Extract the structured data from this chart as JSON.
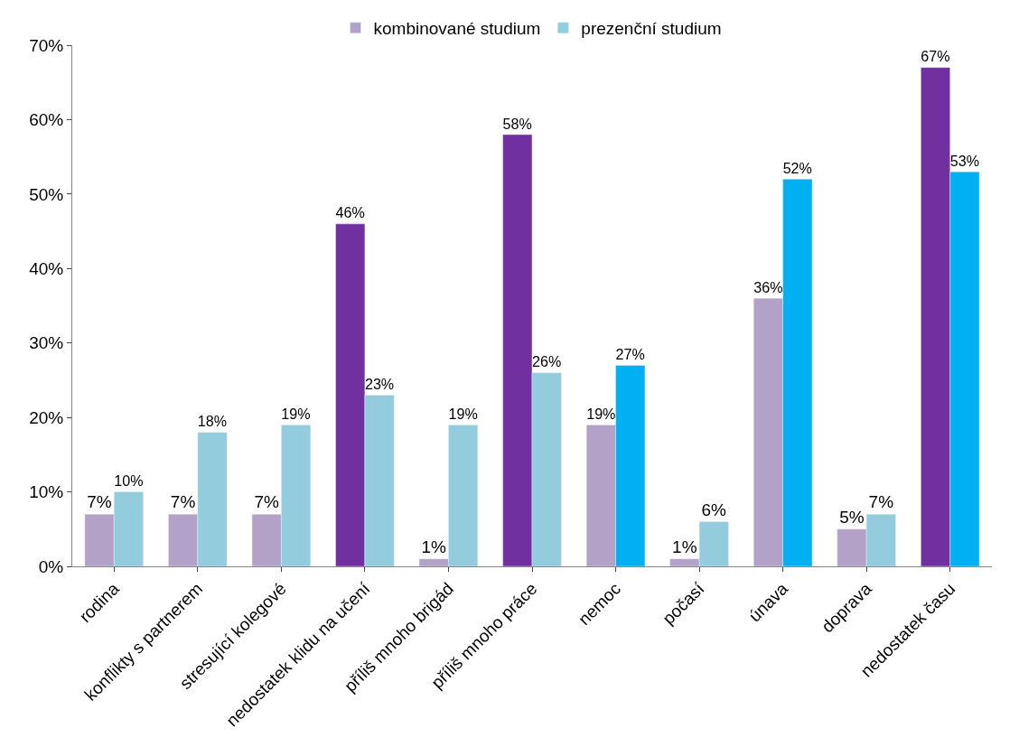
{
  "chart_data": {
    "type": "bar",
    "categories": [
      "rodina",
      "konflikty s partnerem",
      "stresující kolegové",
      "nedostatek klidu na učení",
      "příliš mnoho brigád",
      "příliš mnoho práce",
      "nemoc",
      "počasí",
      "únava",
      "doprava",
      "nedostatek času"
    ],
    "series": [
      {
        "name": "kombinované studium",
        "colors": [
          "#b3a2c7",
          "#b3a2c7",
          "#b3a2c7",
          "#7030a0",
          "#b3a2c7",
          "#7030a0",
          "#b3a2c7",
          "#b3a2c7",
          "#b3a2c7",
          "#b3a2c7",
          "#7030a0"
        ],
        "values": [
          7,
          7,
          7,
          46,
          1,
          58,
          19,
          1,
          36,
          5,
          67
        ],
        "value_labels": [
          "7%",
          "7%",
          "7%",
          "46%",
          "1%",
          "58%",
          "19%",
          "1%",
          "36%",
          "5%",
          "67%"
        ]
      },
      {
        "name": "prezenční studium",
        "colors": [
          "#93cddd",
          "#93cddd",
          "#93cddd",
          "#93cddd",
          "#93cddd",
          "#93cddd",
          "#00b0f0",
          "#93cddd",
          "#00b0f0",
          "#93cddd",
          "#00b0f0"
        ],
        "values": [
          10,
          18,
          19,
          23,
          19,
          26,
          27,
          6,
          52,
          7,
          53
        ],
        "value_labels": [
          "10%",
          "18%",
          "19%",
          "23%",
          "19%",
          "26%",
          "27%",
          "6%",
          "52%",
          "7%",
          "53%"
        ]
      }
    ],
    "ylim": [
      0,
      70
    ],
    "yticks": [
      {
        "value": 0,
        "label": "0%"
      },
      {
        "value": 10,
        "label": "10%"
      },
      {
        "value": 20,
        "label": "20%"
      },
      {
        "value": 30,
        "label": "30%"
      },
      {
        "value": 40,
        "label": "40%"
      },
      {
        "value": 50,
        "label": "50%"
      },
      {
        "value": 60,
        "label": "60%"
      },
      {
        "value": 70,
        "label": "70%"
      }
    ],
    "grid": false,
    "legend": "top"
  }
}
